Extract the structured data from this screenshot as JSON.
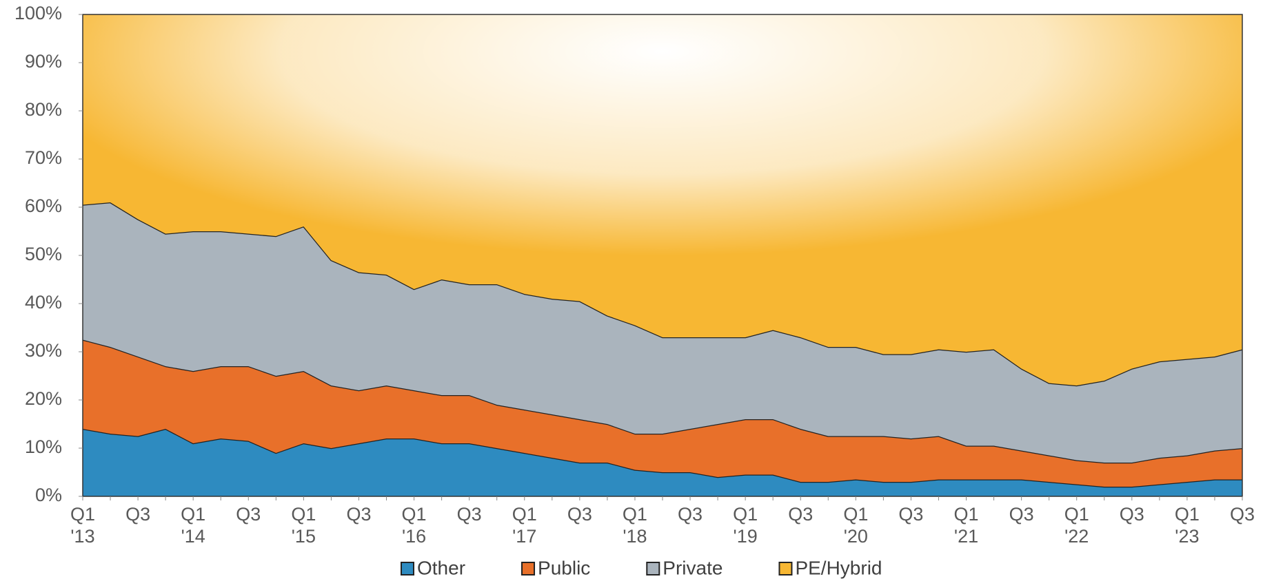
{
  "chart_data": {
    "type": "stacked_area_100",
    "categories": [
      "Q1 '13",
      null,
      "Q3",
      null,
      "Q1 '14",
      null,
      "Q3",
      null,
      "Q1 '15",
      null,
      "Q3",
      null,
      "Q1 '16",
      null,
      "Q3",
      null,
      "Q1 '17",
      null,
      "Q3",
      null,
      "Q1 '18",
      null,
      "Q3",
      null,
      "Q1 '19",
      null,
      "Q3",
      null,
      "Q1 '20",
      null,
      "Q3",
      null,
      "Q1 '21",
      null,
      "Q3",
      null,
      "Q1 '22",
      null,
      "Q3",
      null,
      "Q1 '23",
      null,
      "Q3"
    ],
    "series": [
      {
        "name": "Other",
        "color": "#2e8bc0",
        "values": [
          14,
          13,
          12.5,
          14,
          11,
          12,
          11.5,
          9,
          11,
          10,
          11,
          12,
          12,
          11,
          11,
          10,
          9,
          8,
          7,
          7,
          5.5,
          5,
          5,
          4,
          4.5,
          4.5,
          3,
          3,
          3.5,
          3,
          3,
          3.5,
          3.5,
          3.5,
          3.5,
          3,
          2.5,
          2,
          2,
          2.5,
          3,
          3.5,
          3.5
        ]
      },
      {
        "name": "Public",
        "color": "#e8702a",
        "values": [
          18.5,
          18,
          16.5,
          13,
          15,
          15,
          15.5,
          16,
          15,
          13,
          11,
          11,
          10,
          10,
          10,
          9,
          9,
          9,
          9,
          8,
          7.5,
          8,
          9,
          11,
          11.5,
          11.5,
          11,
          9.5,
          9,
          9.5,
          9,
          9,
          7,
          7,
          6,
          5.5,
          5,
          5,
          5,
          5.5,
          5.5,
          6,
          6.5
        ]
      },
      {
        "name": "Private",
        "color": "#aab4bd",
        "values": [
          28,
          30,
          28.5,
          27.5,
          29,
          28,
          27.5,
          29,
          30,
          26,
          24.5,
          23,
          21,
          24,
          23,
          25,
          24,
          24,
          24.5,
          22.5,
          22.5,
          20,
          19,
          18,
          17,
          18.5,
          19,
          18.5,
          18.5,
          17,
          17.5,
          18,
          19.5,
          20,
          17,
          15,
          15.5,
          17,
          19.5,
          20,
          20,
          19.5,
          20.5
        ]
      },
      {
        "name": "PE/Hybrid",
        "color": "#f7b733",
        "values": [
          39.5,
          39,
          42.5,
          45.5,
          45,
          45,
          45.5,
          46,
          44,
          51,
          53.5,
          54,
          57,
          55,
          56,
          56,
          58,
          59,
          59.5,
          62.5,
          64.5,
          67,
          67,
          67,
          67,
          65.5,
          67,
          69,
          69,
          70.5,
          70.5,
          69.5,
          70,
          69.5,
          73.5,
          76.5,
          77,
          76,
          73.5,
          72,
          71.5,
          71,
          69.5
        ]
      }
    ],
    "ylim": [
      0,
      100
    ],
    "yticks": [
      {
        "value": 0,
        "label": "0%"
      },
      {
        "value": 10,
        "label": "10%"
      },
      {
        "value": 20,
        "label": "20%"
      },
      {
        "value": 30,
        "label": "30%"
      },
      {
        "value": 40,
        "label": "40%"
      },
      {
        "value": 50,
        "label": "50%"
      },
      {
        "value": 60,
        "label": "60%"
      },
      {
        "value": 70,
        "label": "70%"
      },
      {
        "value": 80,
        "label": "80%"
      },
      {
        "value": 90,
        "label": "90%"
      },
      {
        "value": 100,
        "label": "100%"
      }
    ]
  }
}
